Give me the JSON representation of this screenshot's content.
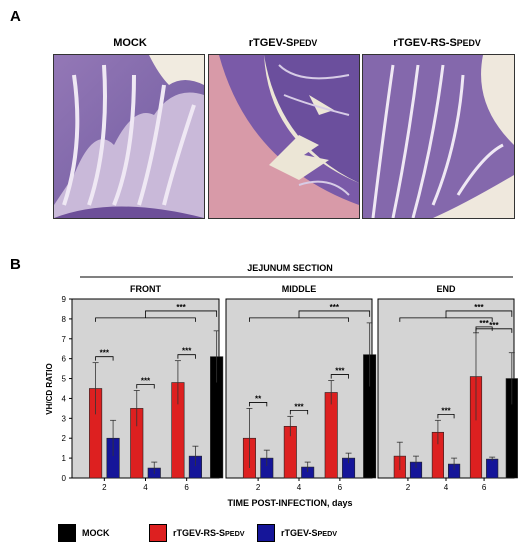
{
  "panel_a": {
    "letter": "A",
    "images": [
      {
        "title_main": "MOCK",
        "title_sc": ""
      },
      {
        "title_main": "rTGEV-S",
        "title_sc": "PEDV"
      },
      {
        "title_main": "rTGEV-RS-S",
        "title_sc": "PEDV"
      }
    ]
  },
  "panel_b": {
    "letter": "B",
    "section_title": "JEJUNUM SECTION",
    "ylabel": "VH/CD RATIO",
    "xlabel": "TIME POST-INFECTION, days"
  },
  "colors": {
    "mock": "#000000",
    "rs": "#dd2020",
    "s": "#151599",
    "panel_bg": "#d4d4d4"
  },
  "legend": [
    {
      "main": "MOCK",
      "sc": "",
      "color_key": "mock"
    },
    {
      "main": "rTGEV-RS-S",
      "sc": "PEDV",
      "color_key": "rs"
    },
    {
      "main": "rTGEV-S",
      "sc": "PEDV",
      "color_key": "s"
    }
  ],
  "chart_data": [
    {
      "type": "bar",
      "title": "FRONT",
      "categories": [
        "2",
        "4",
        "6"
      ],
      "ylim": [
        0,
        9
      ],
      "yticks": [
        0,
        1,
        2,
        3,
        4,
        5,
        6,
        7,
        8,
        9
      ],
      "series": [
        {
          "name": "rTGEV-RS-SPEDV",
          "values": [
            4.5,
            3.5,
            4.8
          ],
          "errors": [
            1.3,
            0.9,
            1.1
          ]
        },
        {
          "name": "rTGEV-SPEDV",
          "values": [
            2.0,
            0.5,
            1.1
          ],
          "errors": [
            0.9,
            0.3,
            0.5
          ]
        },
        {
          "name": "MOCK",
          "values": [
            null,
            null,
            6.1
          ],
          "errors": [
            null,
            null,
            1.3
          ]
        }
      ],
      "significance": [
        {
          "label": "***",
          "between": "2",
          "pair": "RS-S"
        },
        {
          "label": "***",
          "between": "4",
          "pair": "RS-S"
        },
        {
          "label": "***",
          "between": "6",
          "pair": "RS-S"
        },
        {
          "label": "***",
          "between": "2,4,6 vs MOCK",
          "pair": "bracket"
        }
      ]
    },
    {
      "type": "bar",
      "title": "MIDDLE",
      "categories": [
        "2",
        "4",
        "6"
      ],
      "ylim": [
        0,
        9
      ],
      "series": [
        {
          "name": "rTGEV-RS-SPEDV",
          "values": [
            2.0,
            2.6,
            4.3
          ],
          "errors": [
            1.5,
            0.5,
            0.6
          ]
        },
        {
          "name": "rTGEV-SPEDV",
          "values": [
            1.0,
            0.55,
            1.0
          ],
          "errors": [
            0.4,
            0.25,
            0.25
          ]
        },
        {
          "name": "MOCK",
          "values": [
            null,
            null,
            6.2
          ],
          "errors": [
            null,
            null,
            1.6
          ]
        }
      ],
      "significance": [
        {
          "label": "**",
          "between": "2",
          "pair": "RS-S"
        },
        {
          "label": "***",
          "between": "4",
          "pair": "RS-S"
        },
        {
          "label": "***",
          "between": "6",
          "pair": "RS-S"
        },
        {
          "label": "***",
          "between": "2,4,6 vs MOCK",
          "pair": "bracket"
        }
      ]
    },
    {
      "type": "bar",
      "title": "END",
      "categories": [
        "2",
        "4",
        "6"
      ],
      "ylim": [
        0,
        9
      ],
      "series": [
        {
          "name": "rTGEV-RS-SPEDV",
          "values": [
            1.1,
            2.3,
            5.1
          ],
          "errors": [
            0.7,
            0.6,
            2.2
          ]
        },
        {
          "name": "rTGEV-SPEDV",
          "values": [
            0.8,
            0.7,
            0.95
          ],
          "errors": [
            0.3,
            0.3,
            0.1
          ]
        },
        {
          "name": "MOCK",
          "values": [
            null,
            null,
            5.0
          ],
          "errors": [
            null,
            null,
            1.3
          ]
        }
      ],
      "significance": [
        {
          "label": "***",
          "between": "4",
          "pair": "RS-S"
        },
        {
          "label": "***",
          "between": "6",
          "pair": "RS-S"
        },
        {
          "label": "***",
          "between": "6",
          "pair": "RS-MOCK"
        },
        {
          "label": "***",
          "between": "2,4,6 vs MOCK",
          "pair": "bracket"
        }
      ]
    }
  ]
}
